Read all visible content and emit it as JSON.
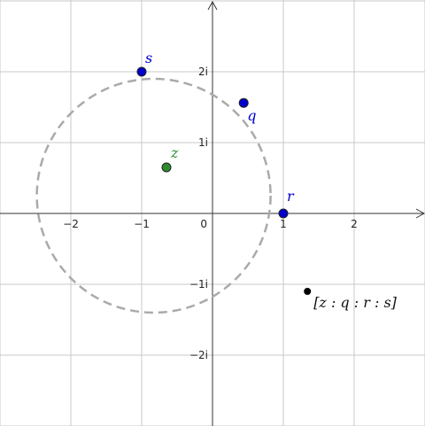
{
  "plane": {
    "x_range": [
      -3,
      3
    ],
    "y_range": [
      -3,
      3
    ],
    "grid": true,
    "x_ticks": [
      {
        "v": -2,
        "label": "−2"
      },
      {
        "v": -1,
        "label": "−1"
      },
      {
        "v": 1,
        "label": "1"
      },
      {
        "v": 2,
        "label": "2"
      }
    ],
    "y_ticks": [
      {
        "v": 2,
        "label": "2i"
      },
      {
        "v": 1,
        "label": "1i"
      },
      {
        "v": -1,
        "label": "−1i"
      },
      {
        "v": -2,
        "label": "−2i"
      }
    ],
    "origin_label": "0"
  },
  "circle": {
    "center": [
      -0.83,
      0.25
    ],
    "radius": 1.65,
    "color": "#aaaaaa",
    "style": "dashed"
  },
  "points": [
    {
      "name": "s",
      "label": "s",
      "re": -1.0,
      "im": 2.0,
      "color": "#0000cc",
      "label_color": "#0000cc"
    },
    {
      "name": "q",
      "label": "q",
      "re": 0.44,
      "im": 1.56,
      "color": "#0000cc",
      "label_color": "#0000cc"
    },
    {
      "name": "r",
      "label": "r",
      "re": 1.0,
      "im": 0.0,
      "color": "#0000cc",
      "label_color": "#0000cc"
    },
    {
      "name": "z",
      "label": "z",
      "re": -0.65,
      "im": 0.65,
      "color": "#2e8b2e",
      "label_color": "#2e8b2e"
    }
  ],
  "cross_ratio": {
    "label": "[z : q : r : s]",
    "re": 1.34,
    "im": -1.1,
    "color": "#000000"
  }
}
